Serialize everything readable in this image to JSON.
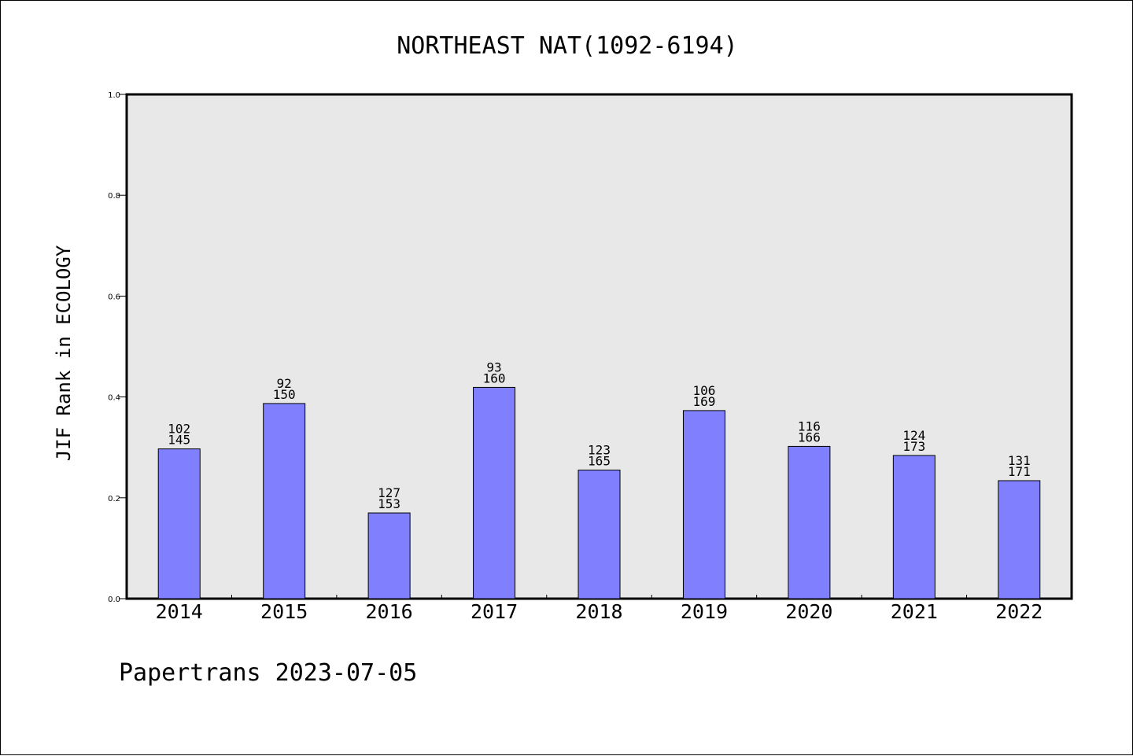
{
  "chart_data": {
    "type": "bar",
    "title": "NORTHEAST NAT(1092-6194)",
    "xlabel": "",
    "ylabel": "JIF Rank in ECOLOGY",
    "ylim": [
      0,
      1.0
    ],
    "yticks": [
      "0.0",
      "0.2",
      "0.4",
      "0.6",
      "0.8",
      "1.0"
    ],
    "grid": false,
    "categories": [
      "2014",
      "2015",
      "2016",
      "2017",
      "2018",
      "2019",
      "2020",
      "2021",
      "2022"
    ],
    "values": [
      0.297,
      0.387,
      0.17,
      0.419,
      0.255,
      0.373,
      0.302,
      0.284,
      0.234
    ],
    "rank_labels": [
      "102",
      "92",
      "127",
      "93",
      "123",
      "106",
      "116",
      "124",
      "131"
    ],
    "total_labels": [
      "145",
      "150",
      "153",
      "160",
      "165",
      "169",
      "166",
      "173",
      "171"
    ],
    "colors": {
      "plot_background": "#e8e8e8",
      "bar_fill": "#8080ff",
      "bar_edge": "#000000"
    }
  },
  "footer": {
    "credit": "Papertrans 2023-07-05"
  }
}
